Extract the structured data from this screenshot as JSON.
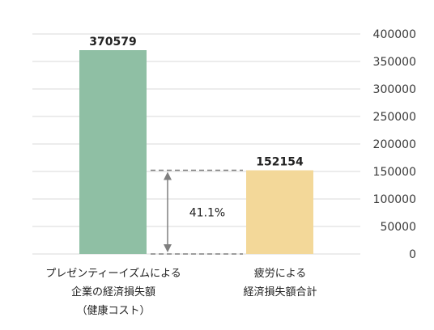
{
  "chart_data": {
    "type": "bar",
    "categories": [
      [
        "プレゼンティーイズムによる",
        "企業の経済損失額",
        "（健康コスト）"
      ],
      [
        "疲労による",
        "経済損失額合計"
      ]
    ],
    "values": [
      370579,
      152154
    ],
    "value_labels": [
      "370579",
      "152154"
    ],
    "ylim": [
      0,
      400000
    ],
    "yticks": [
      0,
      50000,
      100000,
      150000,
      200000,
      250000,
      300000,
      350000,
      400000
    ],
    "grid": true,
    "y_axis_side": "right",
    "legend": "none",
    "colors": [
      "#8fbfa4",
      "#f3d899"
    ],
    "gridline_color": "#d9d9d9",
    "annotation": {
      "label": "41.1%",
      "from_value": 0,
      "to_value": 152154,
      "dash_color": "#7f7f7f"
    }
  }
}
